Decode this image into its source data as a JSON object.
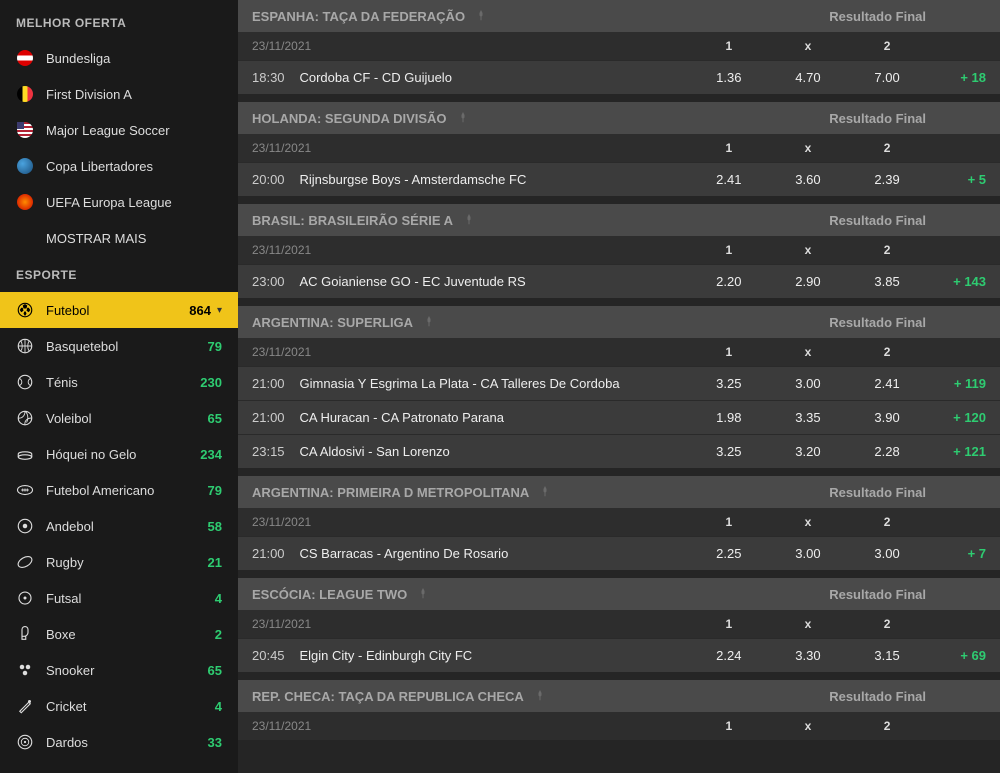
{
  "sidebar": {
    "topHeader": "MELHOR OFERTA",
    "topItems": [
      {
        "label": "Bundesliga",
        "icon": "flag-at"
      },
      {
        "label": "First Division A",
        "icon": "flag-be"
      },
      {
        "label": "Major League Soccer",
        "icon": "flag-us"
      },
      {
        "label": "Copa Libertadores",
        "icon": "globe"
      },
      {
        "label": "UEFA Europa League",
        "icon": "uel"
      },
      {
        "label": "MOSTRAR MAIS",
        "icon": "none"
      }
    ],
    "sportHeader": "ESPORTE",
    "sportItems": [
      {
        "label": "Futebol",
        "count": "864",
        "icon": "football",
        "active": true,
        "chev": true
      },
      {
        "label": "Basquetebol",
        "count": "79",
        "icon": "basketball"
      },
      {
        "label": "Ténis",
        "count": "230",
        "icon": "tennis"
      },
      {
        "label": "Voleibol",
        "count": "65",
        "icon": "volleyball"
      },
      {
        "label": "Hóquei no Gelo",
        "count": "234",
        "icon": "hockey"
      },
      {
        "label": "Futebol Americano",
        "count": "79",
        "icon": "amfoot"
      },
      {
        "label": "Andebol",
        "count": "58",
        "icon": "handball"
      },
      {
        "label": "Rugby",
        "count": "21",
        "icon": "rugby"
      },
      {
        "label": "Futsal",
        "count": "4",
        "icon": "futsal"
      },
      {
        "label": "Boxe",
        "count": "2",
        "icon": "boxe"
      },
      {
        "label": "Snooker",
        "count": "65",
        "icon": "snooker"
      },
      {
        "label": "Cricket",
        "count": "4",
        "icon": "cricket"
      },
      {
        "label": "Dardos",
        "count": "33",
        "icon": "darts"
      }
    ]
  },
  "groups": [
    {
      "title": "ESPANHA: TAÇA DA FEDERAÇÃO",
      "result": "Resultado Final",
      "date": "23/11/2021",
      "matches": [
        {
          "time": "18:30",
          "teams": "Cordoba CF - CD Guijuelo",
          "o1": "1.36",
          "ox": "4.70",
          "o2": "7.00",
          "more": "+ 18"
        }
      ]
    },
    {
      "title": "HOLANDA: SEGUNDA DIVISÃO",
      "result": "Resultado Final",
      "date": "23/11/2021",
      "matches": [
        {
          "time": "20:00",
          "teams": "Rijnsburgse Boys - Amsterdamsche FC",
          "o1": "2.41",
          "ox": "3.60",
          "o2": "2.39",
          "more": "+ 5"
        }
      ]
    },
    {
      "title": "BRASIL: BRASILEIRÃO SÉRIE A",
      "result": "Resultado Final",
      "date": "23/11/2021",
      "matches": [
        {
          "time": "23:00",
          "teams": "AC Goianiense GO - EC Juventude RS",
          "o1": "2.20",
          "ox": "2.90",
          "o2": "3.85",
          "more": "+ 143"
        }
      ]
    },
    {
      "title": "ARGENTINA: SUPERLIGA",
      "result": "Resultado Final",
      "date": "23/11/2021",
      "matches": [
        {
          "time": "21:00",
          "teams": "Gimnasia Y Esgrima La Plata - CA Talleres De Cordoba",
          "o1": "3.25",
          "ox": "3.00",
          "o2": "2.41",
          "more": "+ 119"
        },
        {
          "time": "21:00",
          "teams": "CA Huracan - CA Patronato Parana",
          "o1": "1.98",
          "ox": "3.35",
          "o2": "3.90",
          "more": "+ 120"
        },
        {
          "time": "23:15",
          "teams": "CA Aldosivi - San Lorenzo",
          "o1": "3.25",
          "ox": "3.20",
          "o2": "2.28",
          "more": "+ 121"
        }
      ]
    },
    {
      "title": "ARGENTINA: PRIMEIRA D METROPOLITANA",
      "result": "Resultado Final",
      "date": "23/11/2021",
      "matches": [
        {
          "time": "21:00",
          "teams": "CS Barracas - Argentino De Rosario",
          "o1": "2.25",
          "ox": "3.00",
          "o2": "3.00",
          "more": "+ 7"
        }
      ]
    },
    {
      "title": "ESCÓCIA: LEAGUE TWO",
      "result": "Resultado Final",
      "date": "23/11/2021",
      "matches": [
        {
          "time": "20:45",
          "teams": "Elgin City - Edinburgh City FC",
          "o1": "2.24",
          "ox": "3.30",
          "o2": "3.15",
          "more": "+ 69"
        }
      ]
    },
    {
      "title": "REP. CHECA: TAÇA DA REPUBLICA CHECA",
      "result": "Resultado Final",
      "date": "23/11/2021",
      "matches": []
    }
  ],
  "cols": {
    "c1": "1",
    "cx": "x",
    "c2": "2"
  }
}
